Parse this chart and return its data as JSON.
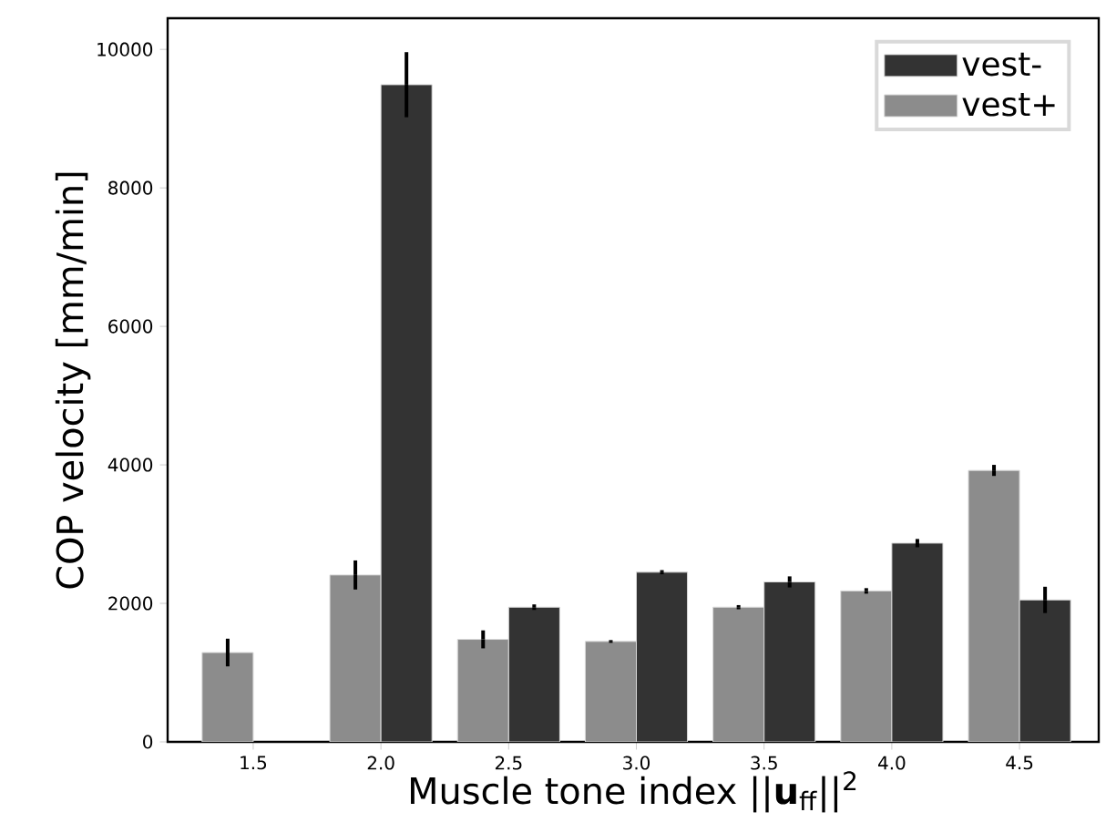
{
  "chart_data": {
    "type": "bar",
    "xlabel": "Muscle tone index ||**u**$_{ff}$||$^{2}$",
    "ylabel": "COP velocity [mm/min]",
    "categories": [
      "1.5",
      "2.0",
      "2.5",
      "3.0",
      "3.5",
      "4.0",
      "4.5"
    ],
    "series": [
      {
        "name": "vest+",
        "color": "#8c8c8c",
        "values": [
          1290,
          2410,
          1480,
          1450,
          1945,
          2180,
          3920
        ],
        "errors": [
          200,
          210,
          130,
          20,
          30,
          40,
          80
        ]
      },
      {
        "name": "vest-",
        "color": "#333333",
        "values": [
          null,
          9490,
          1945,
          2450,
          2310,
          2870,
          2050
        ],
        "errors": [
          null,
          470,
          40,
          30,
          80,
          60,
          190
        ]
      }
    ],
    "ylim": [
      0,
      10450
    ],
    "yticks": [
      0,
      2000,
      4000,
      6000,
      8000,
      10000
    ],
    "legend": "top right",
    "grid": false
  }
}
